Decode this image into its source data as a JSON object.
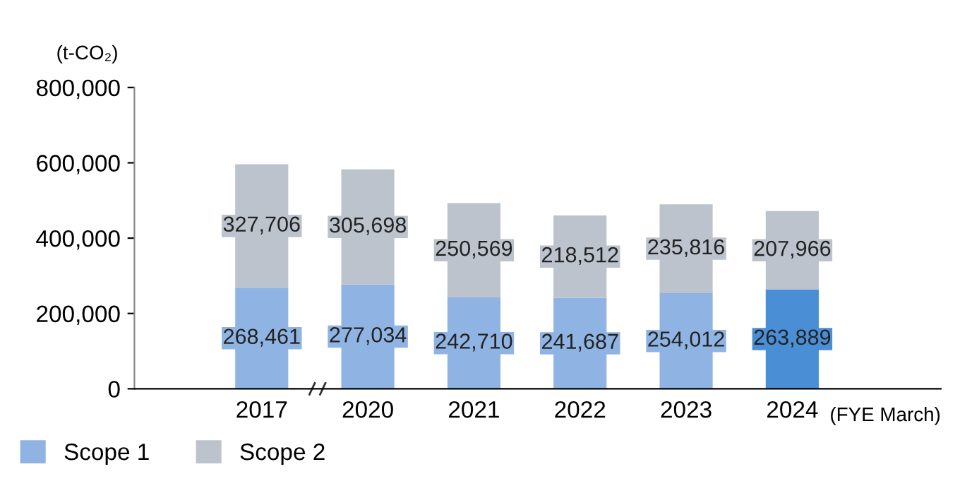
{
  "chart_data": {
    "type": "bar",
    "stacked": true,
    "ylabel": "(t-CO₂)",
    "xlabel": "(FYE March)",
    "categories": [
      "2017",
      "2020",
      "2021",
      "2022",
      "2023",
      "2024"
    ],
    "series": [
      {
        "name": "Scope 1",
        "color": "#8fb4e3",
        "colors": [
          "#8fb4e3",
          "#8fb4e3",
          "#8fb4e3",
          "#8fb4e3",
          "#8fb4e3",
          "#4a8fd6"
        ],
        "values": [
          268461,
          277034,
          242710,
          241687,
          254012,
          263889
        ],
        "value_labels": [
          "268,461",
          "277,034",
          "242,710",
          "241,687",
          "254,012",
          "263,889"
        ]
      },
      {
        "name": "Scope 2",
        "color": "#bcc3cc",
        "values": [
          327706,
          305698,
          250569,
          218512,
          235816,
          207966
        ],
        "value_labels": [
          "327,706",
          "305,698",
          "250,569",
          "218,512",
          "235,816",
          "207,966"
        ]
      }
    ],
    "ylim": [
      0,
      800000
    ],
    "yticks": [
      {
        "value": 0,
        "label": "0"
      },
      {
        "value": 200000,
        "label": "200,000"
      },
      {
        "value": 400000,
        "label": "400,000"
      },
      {
        "value": 600000,
        "label": "600,000"
      },
      {
        "value": 800000,
        "label": "800,000"
      }
    ],
    "grid": false,
    "legend": "bottom left"
  }
}
